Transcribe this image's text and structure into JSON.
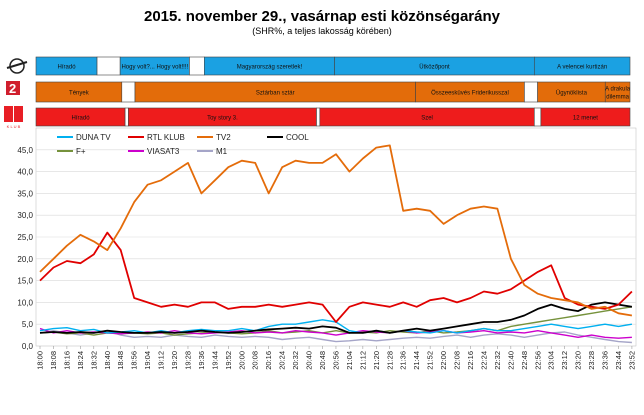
{
  "header": {
    "title": "2015. november 29., vasárnap esti közönségarány",
    "subtitle": "(SHR%, a teljes lakosság körében)"
  },
  "channels": {
    "tv2_color": "#1ba1e2",
    "rtl_color": "#e36c0a",
    "rtl_klub_color": "#ee1c1c"
  },
  "program_bars": {
    "start": "18:00",
    "end": "24:00",
    "tv2": [
      {
        "label": "Híradó",
        "start": "18:00",
        "end": "18:37"
      },
      {
        "label": "",
        "start": "18:37",
        "end": "18:51"
      },
      {
        "label": "Hogy volt?... Hogy volt!!!!",
        "start": "18:51",
        "end": "19:33"
      },
      {
        "label": "",
        "start": "19:33",
        "end": "19:42"
      },
      {
        "label": "Magyarország szeretlek!",
        "start": "19:42",
        "end": "21:01"
      },
      {
        "label": "Ütközőpont",
        "start": "21:01",
        "end": "23:02"
      },
      {
        "label": "A velencei kurtizán",
        "start": "23:02",
        "end": "24:00"
      }
    ],
    "rtl": [
      {
        "label": "Tények",
        "start": "18:00",
        "end": "18:52"
      },
      {
        "label": "",
        "start": "18:52",
        "end": "19:00"
      },
      {
        "label": "Sztárban sztár",
        "start": "19:00",
        "end": "21:50"
      },
      {
        "label": "Összeesküvés Friderikusszal",
        "start": "21:50",
        "end": "22:56"
      },
      {
        "label": "",
        "start": "22:56",
        "end": "23:04"
      },
      {
        "label": "Ügynöklista",
        "start": "23:04",
        "end": "23:45"
      },
      {
        "label": "A drakula dilemma",
        "start": "23:45",
        "end": "24:00"
      }
    ],
    "rtl_klub": [
      {
        "label": "Híradó",
        "start": "18:00",
        "end": "18:54"
      },
      {
        "label": "",
        "start": "18:54",
        "end": "18:56"
      },
      {
        "label": "Toy story 3.",
        "start": "18:56",
        "end": "20:50"
      },
      {
        "label": "",
        "start": "20:50",
        "end": "20:52"
      },
      {
        "label": "Szel",
        "start": "20:52",
        "end": "23:02"
      },
      {
        "label": "",
        "start": "23:02",
        "end": "23:06"
      },
      {
        "label": "12 menet",
        "start": "23:06",
        "end": "24:00"
      }
    ]
  },
  "chart_data": {
    "type": "line",
    "title": "2015. november 29., vasárnap esti közönségarány",
    "ylim": [
      0,
      50
    ],
    "yticks": [
      "0,0",
      "5,0",
      "10,0",
      "15,0",
      "20,0",
      "25,0",
      "30,0",
      "35,0",
      "40,0",
      "45,0"
    ],
    "x": [
      "18:00",
      "18:08",
      "18:16",
      "18:24",
      "18:32",
      "18:40",
      "18:48",
      "18:56",
      "19:04",
      "19:12",
      "19:20",
      "19:28",
      "19:36",
      "19:44",
      "19:52",
      "20:00",
      "20:08",
      "20:16",
      "20:24",
      "20:32",
      "20:40",
      "20:48",
      "20:56",
      "21:04",
      "21:12",
      "21:20",
      "21:28",
      "21:36",
      "21:44",
      "21:52",
      "22:00",
      "22:08",
      "22:16",
      "22:24",
      "22:32",
      "22:40",
      "22:48",
      "22:56",
      "23:04",
      "23:12",
      "23:20",
      "23:28",
      "23:36",
      "23:44",
      "23:52"
    ],
    "legend": [
      "DUNA TV",
      "RTL KLUB",
      "TV2",
      "COOL",
      "F+",
      "VIASAT3",
      "M1"
    ],
    "series": [
      {
        "name": "DUNA TV",
        "color": "#00b0f0",
        "values": [
          3.5,
          4.0,
          4.2,
          3.5,
          3.8,
          3.0,
          3.2,
          3.5,
          3.0,
          3.5,
          3.0,
          3.5,
          3.8,
          3.5,
          3.5,
          4.0,
          3.5,
          4.5,
          5.0,
          5.0,
          5.5,
          6.0,
          5.5,
          3.5,
          3.0,
          3.5,
          3.0,
          3.5,
          3.2,
          3.0,
          3.5,
          3.0,
          3.5,
          4.0,
          3.5,
          3.5,
          4.0,
          4.5,
          5.0,
          4.5,
          4.0,
          4.5,
          5.0,
          4.5,
          5.0
        ]
      },
      {
        "name": "RTL KLUB",
        "color": "#e00000",
        "values": [
          15.0,
          18.0,
          19.5,
          19.0,
          21.0,
          26.0,
          22.0,
          11.0,
          10.0,
          9.0,
          9.5,
          9.0,
          10.0,
          10.0,
          8.5,
          9.0,
          9.0,
          9.5,
          9.0,
          9.5,
          10.0,
          9.5,
          5.5,
          9.0,
          10.0,
          9.5,
          9.0,
          10.0,
          9.0,
          10.5,
          11.0,
          10.0,
          11.0,
          12.5,
          12.0,
          13.0,
          15.0,
          17.0,
          18.5,
          11.0,
          9.5,
          9.0,
          8.5,
          9.5,
          12.5
        ]
      },
      {
        "name": "TV2",
        "color": "#e46c0a",
        "values": [
          17.0,
          20.0,
          23.0,
          25.5,
          24.0,
          22.0,
          27.0,
          33.0,
          37.0,
          38.0,
          40.0,
          42.0,
          35.0,
          38.0,
          41.0,
          42.5,
          42.0,
          35.0,
          41.0,
          42.5,
          42.0,
          42.0,
          44.0,
          40.0,
          43.0,
          45.5,
          46.0,
          31.0,
          31.5,
          31.0,
          28.0,
          30.0,
          31.5,
          32.0,
          31.5,
          20.0,
          14.0,
          12.0,
          11.0,
          10.5,
          10.0,
          8.5,
          9.0,
          7.5,
          7.0
        ]
      },
      {
        "name": "COOL",
        "color": "#000000",
        "values": [
          3.0,
          3.2,
          3.0,
          3.2,
          3.0,
          3.5,
          3.2,
          3.0,
          3.0,
          3.2,
          3.0,
          3.2,
          3.5,
          3.2,
          3.0,
          3.2,
          3.5,
          3.8,
          4.0,
          4.2,
          4.0,
          4.5,
          4.2,
          3.0,
          3.0,
          3.5,
          3.0,
          3.5,
          4.0,
          3.5,
          4.0,
          4.5,
          5.0,
          5.5,
          5.5,
          6.0,
          7.0,
          8.5,
          9.5,
          8.5,
          8.0,
          9.5,
          10.0,
          9.5,
          9.0
        ]
      },
      {
        "name": "F+",
        "color": "#76923c",
        "values": [
          3.0,
          3.2,
          2.8,
          3.0,
          2.5,
          3.0,
          2.8,
          3.0,
          2.8,
          3.0,
          2.5,
          2.8,
          3.0,
          3.2,
          3.0,
          2.8,
          3.0,
          3.5,
          3.0,
          3.2,
          3.5,
          3.0,
          3.5,
          3.0,
          3.2,
          3.0,
          3.5,
          3.2,
          3.0,
          3.5,
          3.0,
          3.2,
          3.5,
          4.0,
          3.5,
          4.5,
          5.0,
          5.5,
          6.0,
          6.5,
          7.0,
          7.5,
          8.0,
          8.5,
          9.0
        ]
      },
      {
        "name": "VIASAT3",
        "color": "#cc00cc",
        "values": [
          4.0,
          3.0,
          3.5,
          3.0,
          3.2,
          3.0,
          2.8,
          3.0,
          3.2,
          3.0,
          3.5,
          3.0,
          2.8,
          3.0,
          3.2,
          3.5,
          3.0,
          3.2,
          3.0,
          3.5,
          3.2,
          3.0,
          2.5,
          3.0,
          3.5,
          3.2,
          3.0,
          3.5,
          3.0,
          3.2,
          3.5,
          3.0,
          3.2,
          3.5,
          3.0,
          3.2,
          3.0,
          3.5,
          3.0,
          2.5,
          2.0,
          2.5,
          2.0,
          1.8,
          2.0
        ]
      },
      {
        "name": "M1",
        "color": "#a5a5c8",
        "values": [
          3.0,
          3.5,
          3.0,
          2.5,
          3.0,
          3.5,
          2.5,
          2.0,
          2.2,
          2.0,
          2.5,
          2.2,
          2.0,
          2.5,
          2.2,
          2.0,
          2.2,
          2.0,
          1.5,
          1.8,
          2.0,
          1.5,
          1.0,
          1.2,
          1.5,
          1.2,
          1.5,
          1.8,
          2.0,
          1.8,
          2.2,
          2.5,
          2.0,
          2.5,
          2.8,
          2.5,
          2.0,
          2.5,
          3.0,
          3.2,
          2.5,
          2.0,
          1.5,
          1.0,
          0.8
        ]
      }
    ]
  }
}
